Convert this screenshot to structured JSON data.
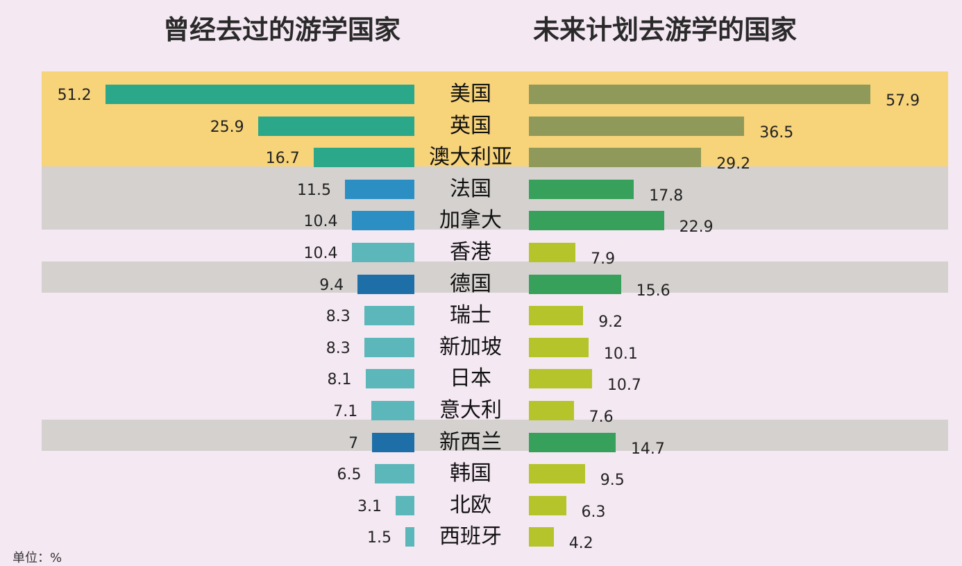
{
  "chart_data": {
    "type": "bar",
    "titles": {
      "left": "曾经去过的游学国家",
      "right": "未来计划去游学的国家"
    },
    "categories": [
      "美国",
      "英国",
      "澳大利亚",
      "法国",
      "加拿大",
      "香港",
      "德国",
      "瑞士",
      "新加坡",
      "日本",
      "意大利",
      "新西兰",
      "韩国",
      "北欧",
      "西班牙"
    ],
    "series": [
      {
        "values": [
          51.2,
          25.9,
          16.7,
          11.5,
          10.4,
          10.4,
          9.4,
          8.3,
          8.3,
          8.1,
          7.1,
          7,
          6.5,
          3.1,
          1.5
        ]
      },
      {
        "values": [
          57.9,
          36.5,
          29.2,
          17.8,
          22.9,
          7.9,
          15.6,
          9.2,
          10.1,
          10.7,
          7.6,
          14.7,
          9.5,
          6.3,
          4.2
        ]
      }
    ],
    "value_labels": {
      "left": [
        "51.2",
        "25.9",
        "16.7",
        "11.5",
        "10.4",
        "10.4",
        "9.4",
        "8.3",
        "8.3",
        "8.1",
        "7.1",
        "7",
        "6.5",
        "3.1",
        "1.5"
      ],
      "right": [
        "57.9",
        "36.5",
        "29.2",
        "17.8",
        "22.9",
        "7.9",
        "15.6",
        "9.2",
        "10.1",
        "10.7",
        "7.6",
        "14.7",
        "9.5",
        "6.3",
        "4.2"
      ]
    },
    "highlight_groups": [
      {
        "rows": [
          0,
          1,
          2
        ],
        "color": "#f7d37a"
      },
      {
        "rows": [
          3,
          4
        ],
        "color": "#d4d1cf"
      },
      {
        "rows": [
          6
        ],
        "color": "#d4d1cf"
      },
      {
        "rows": [
          11
        ],
        "color": "#d4d1cf"
      }
    ],
    "colors": {
      "left_top3": "#2aa889",
      "left_medium": "#2b8fc4",
      "left_dark": "#1e6fa8",
      "left_light": "#5bb7b9",
      "right_top3": "#8f9a5a",
      "right_green": "#37a05a",
      "right_yellowgreen": "#b4c42a",
      "background": "#f4e8f2"
    },
    "unit_label": "单位：%"
  }
}
